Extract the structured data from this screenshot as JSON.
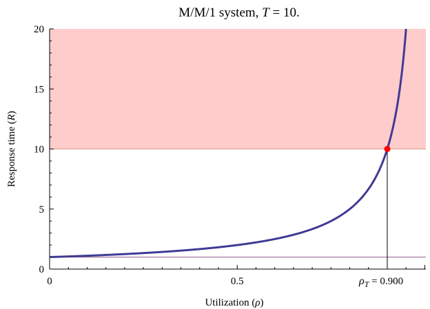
{
  "chart_data": {
    "type": "line",
    "title": "M/M/1 system,  T = 10.",
    "title_parts": {
      "prefix": "M/M/1 system,  ",
      "var": "T",
      "suffix": " = 10."
    },
    "xlabel": "Utilization (ρ)",
    "xlabel_parts": {
      "prefix": "Utilization (",
      "var": "ρ",
      "suffix": ")"
    },
    "ylabel": "Response time (R)",
    "ylabel_parts": {
      "prefix": "Response time (",
      "var": "R",
      "suffix": ")"
    },
    "xlim": [
      0,
      1
    ],
    "ylim": [
      0,
      20
    ],
    "x_ticks": [
      {
        "value": 0,
        "label": "0"
      },
      {
        "value": 0.5,
        "label": "0.5"
      }
    ],
    "y_ticks": [
      {
        "value": 0,
        "label": "0"
      },
      {
        "value": 5,
        "label": "5"
      },
      {
        "value": 10,
        "label": "10"
      },
      {
        "value": 15,
        "label": "15"
      },
      {
        "value": 20,
        "label": "20"
      }
    ],
    "series": [
      {
        "formula": "R = 1 / (1 - ρ)",
        "x": [
          0,
          0.1,
          0.2,
          0.3,
          0.4,
          0.5,
          0.6,
          0.7,
          0.75,
          0.8,
          0.85,
          0.9,
          0.925,
          0.95
        ],
        "values": [
          1,
          1.11,
          1.25,
          1.43,
          1.67,
          2,
          2.5,
          3.33,
          4,
          5,
          6.67,
          10,
          13.33,
          20
        ],
        "color": "#3f3a93"
      }
    ],
    "threshold": {
      "y": 10,
      "color": "#d9a07d"
    },
    "baseline": {
      "y": 1,
      "color": "#9b6a97"
    },
    "shaded_region": {
      "y_from": 10,
      "y_to": 20,
      "color": "#ffcccc"
    },
    "marker": {
      "x": 0.9,
      "y": 10,
      "color": "#ff0000"
    },
    "marker_label": {
      "var": "ρ",
      "sub": "T",
      "text": " = 0.900"
    }
  }
}
